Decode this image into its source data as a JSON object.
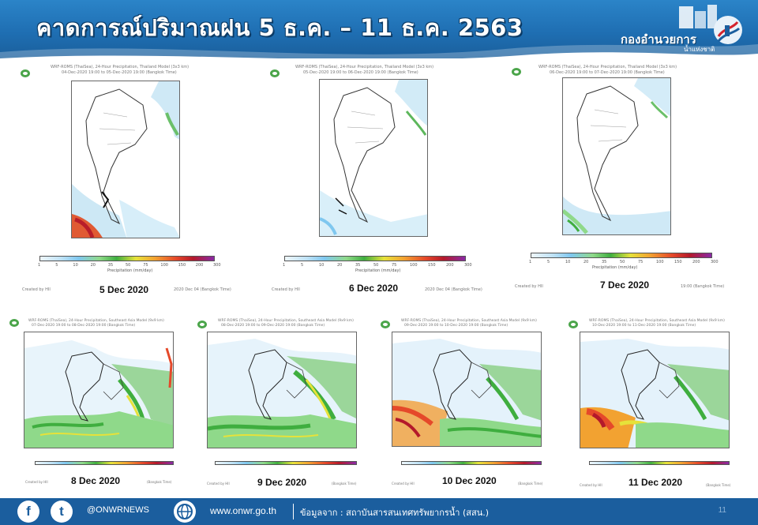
{
  "header": {
    "title": "คาดการณ์ปริมาณฝน 5 ธ.ค. – 11 ธ.ค. 2563",
    "logo_text": "กองอำนวยการ",
    "logo_sub": "น้ำแห่งชาติ"
  },
  "panels": [
    {
      "date": "5 Dec 2020",
      "meta_top": "WRF-ROMS (ThaiSea), 24-Hour Precipitation, Thailand Model (3x3 km)",
      "meta_sub": "04-Dec-2020 19:00 to 05-Dec-2020 19:00 (Bangkok Time)",
      "scale_label": "Precipitation (mm/day)",
      "footer_left": "Created by HII",
      "footer_right": "2020 Dec 04 (Bangkok Time)"
    },
    {
      "date": "6 Dec 2020",
      "meta_top": "WRF-ROMS (ThaiSea), 24-Hour Precipitation, Thailand Model (3x3 km)",
      "meta_sub": "05-Dec-2020 19:00 to 06-Dec-2020 19:00 (Bangkok Time)",
      "scale_label": "Precipitation (mm/day)",
      "footer_left": "Created by HII",
      "footer_right": "2020 Dec 04 (Bangkok Time)"
    },
    {
      "date": "7 Dec 2020",
      "meta_top": "WRF-ROMS (ThaiSea), 24-Hour Precipitation, Thailand Model (3x3 km)",
      "meta_sub": "06-Dec-2020 19:00 to 07-Dec-2020 19:00 (Bangkok Time)",
      "scale_label": "Precipitation (mm/day)",
      "footer_left": "Created by HII",
      "footer_right": "19:00 (Bangkok Time)"
    },
    {
      "date": "8 Dec 2020",
      "meta_top": "WRF-ROMS (ThaiSea), 24-Hour Precipitation, Southeast Asia Model (9x9 km)",
      "meta_sub": "07-Dec-2020 19:00 to 08-Dec-2020 19:00 (Bangkok Time)",
      "scale_label": "",
      "footer_left": "Created by HII",
      "footer_right": "(Bangkok Time)"
    },
    {
      "date": "9 Dec 2020",
      "meta_top": "WRF-ROMS (ThaiSea), 24-Hour Precipitation, Southeast Asia Model (9x9 km)",
      "meta_sub": "08-Dec-2020 19:00 to 09-Dec-2020 19:00 (Bangkok Time)",
      "scale_label": "",
      "footer_left": "Created by HII",
      "footer_right": "(Bangkok Time)"
    },
    {
      "date": "10 Dec 2020",
      "meta_top": "WRF-ROMS (ThaiSea), 24-Hour Precipitation, Southeast Asia Model (9x9 km)",
      "meta_sub": "09-Dec-2020 19:00 to 10-Dec-2020 19:00 (Bangkok Time)",
      "scale_label": "",
      "footer_left": "Created by HII",
      "footer_right": "(Bangkok Time)"
    },
    {
      "date": "11 Dec 2020",
      "meta_top": "WRF-ROMS (ThaiSea), 24-Hour Precipitation, Southeast Asia Model (9x9 km)",
      "meta_sub": "10-Dec-2020 19:00 to 11-Dec-2020 19:00 (Bangkok Time)",
      "scale_label": "",
      "footer_left": "Created by HII",
      "footer_right": "(Bangkok Time)"
    }
  ],
  "scale_ticks": [
    "1",
    "5",
    "10",
    "20",
    "35",
    "50",
    "75",
    "100",
    "150",
    "200",
    "300"
  ],
  "footer": {
    "facebook_icon": "f",
    "twitter_icon": "t",
    "handle": "@ONWRNEWS",
    "web_icon": "www",
    "website": "www.onwr.go.th",
    "source": "ข้อมูลจาก : สถาบันสารสนเทศทรัพยากรน้ำ (สสน.)",
    "page_number": "11"
  },
  "colors": {
    "header_blue": "#1f6fb3",
    "footer_blue": "#1b5e9e",
    "title_text": "#ffffff"
  }
}
